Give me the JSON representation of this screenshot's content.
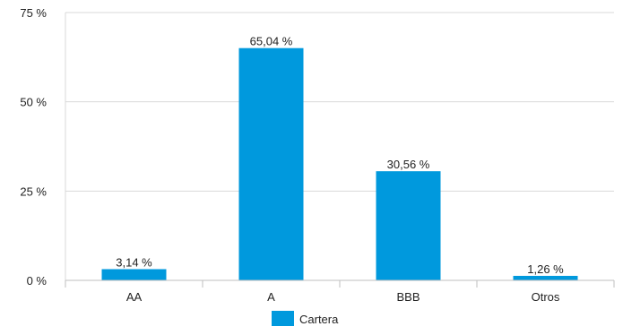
{
  "chart_data": {
    "type": "bar",
    "categories": [
      "AA",
      "A",
      "BBB",
      "Otros"
    ],
    "series": [
      {
        "name": "Cartera",
        "values": [
          3.14,
          65.04,
          30.56,
          1.26
        ],
        "value_labels": [
          "3,14 %",
          "65,04 %",
          "30,56 %",
          "1,26 %"
        ],
        "color": "#0099DD"
      }
    ],
    "title": "",
    "xlabel": "",
    "ylabel": "",
    "ylim": [
      0,
      75
    ],
    "yticks": [
      0,
      25,
      50,
      75
    ],
    "ytick_labels": [
      "0 %",
      "25 %",
      "50 %",
      "75 %"
    ],
    "grid": true,
    "legend_position": "bottom-center"
  },
  "colors": {
    "bar": "#0099DD",
    "grid": "#D9D9D9",
    "axis": "#BFBFBF",
    "text": "#222222"
  }
}
